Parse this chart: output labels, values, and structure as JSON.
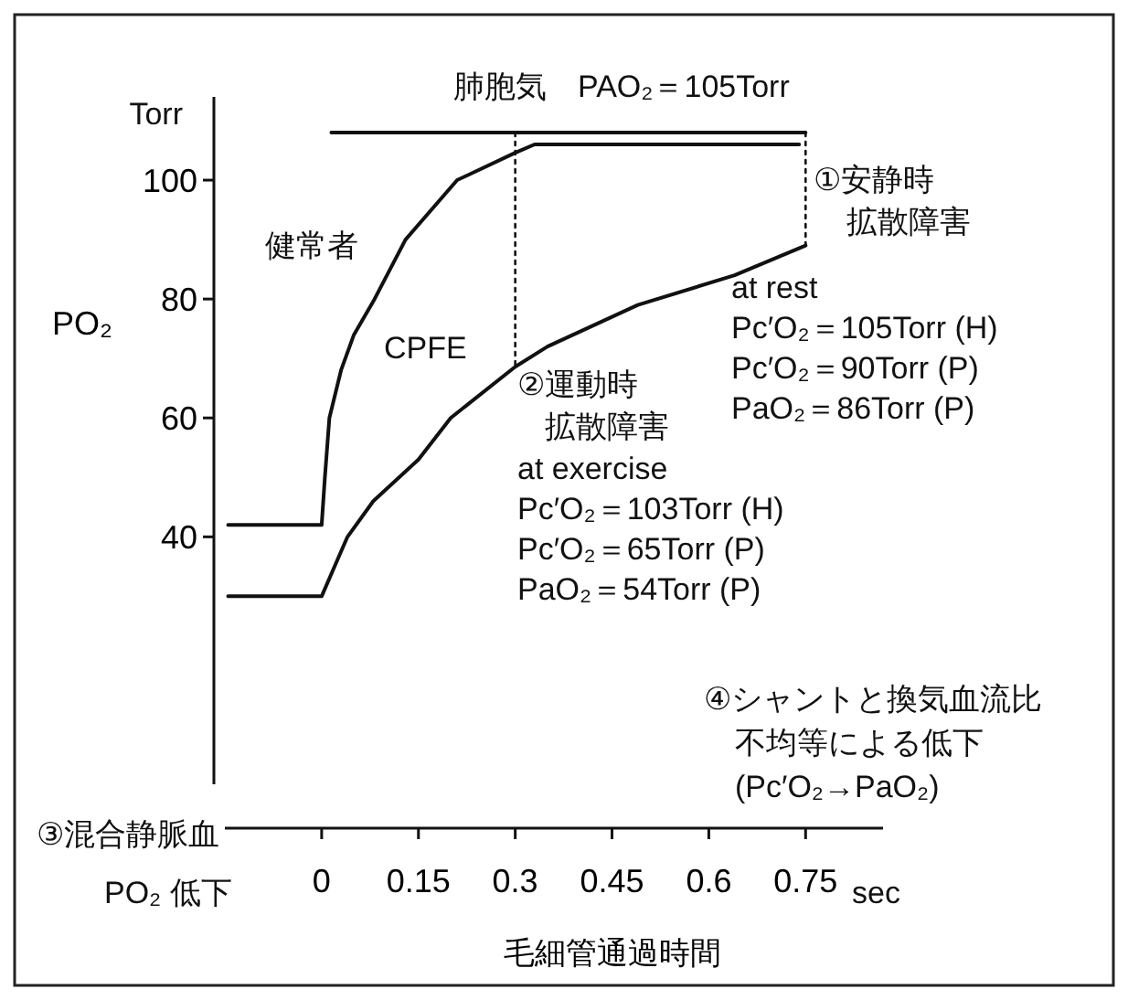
{
  "chart_data": {
    "type": "line",
    "ylabel": "PO₂",
    "xlabel": "毛細管通過時間",
    "xlim": [
      -0.15,
      0.87
    ],
    "ylim": [
      -9,
      114
    ],
    "xticks": [
      0,
      0.15,
      0.3,
      0.45,
      0.6,
      0.75
    ],
    "yticks": [
      40,
      60,
      80,
      100
    ],
    "grid": false,
    "legend": false,
    "marker": "none",
    "series": [
      {
        "name": "肺胞気　PAO₂＝105Torr",
        "color": "#111111",
        "x": [
          0.015,
          0.75
        ],
        "values": [
          108,
          108
        ]
      },
      {
        "name": "健常者",
        "color": "#111111",
        "x": [
          -0.145,
          0,
          0.005,
          0.012,
          0.03,
          0.05,
          0.082,
          0.13,
          0.21,
          0.3,
          0.33,
          0.74
        ],
        "values": [
          42,
          42,
          50,
          60,
          68,
          74,
          80,
          90,
          100,
          104.6,
          106,
          106
        ]
      },
      {
        "name": "CPFE",
        "color": "#111111",
        "x": [
          -0.145,
          0,
          0.02,
          0.04,
          0.08,
          0.15,
          0.2,
          0.3,
          0.35,
          0.49,
          0.64,
          0.75
        ],
        "values": [
          30,
          30,
          35,
          40,
          46,
          53,
          60,
          68.6,
          72,
          79,
          84,
          89
        ]
      },
      {
        "color": "#111111",
        "line_style": "dotted",
        "x": [
          0.3,
          0.3
        ],
        "values": [
          108,
          68.6
        ]
      },
      {
        "color": "#111111",
        "line_style": "dotted",
        "x": [
          0.75,
          0.75
        ],
        "values": [
          108,
          89
        ]
      }
    ],
    "annotations": [
      "Torr",
      "①安静時",
      "拡散障害",
      "at rest\nPc′O₂＝105Torr (H)\nPc′O₂＝90Torr (P)\nPaO₂＝86Torr (P)",
      "②運動時",
      "拡散障害",
      "at exercise\nPc′O₂＝103Torr (H)\nPc′O₂＝65Torr (P)\nPaO₂＝54Torr (P)",
      "④シャントと換気血流比",
      "不均等による低下",
      "(Pc′O₂→PaO₂)",
      "③混合静脈血",
      "PO₂ 低下",
      "sec"
    ]
  }
}
